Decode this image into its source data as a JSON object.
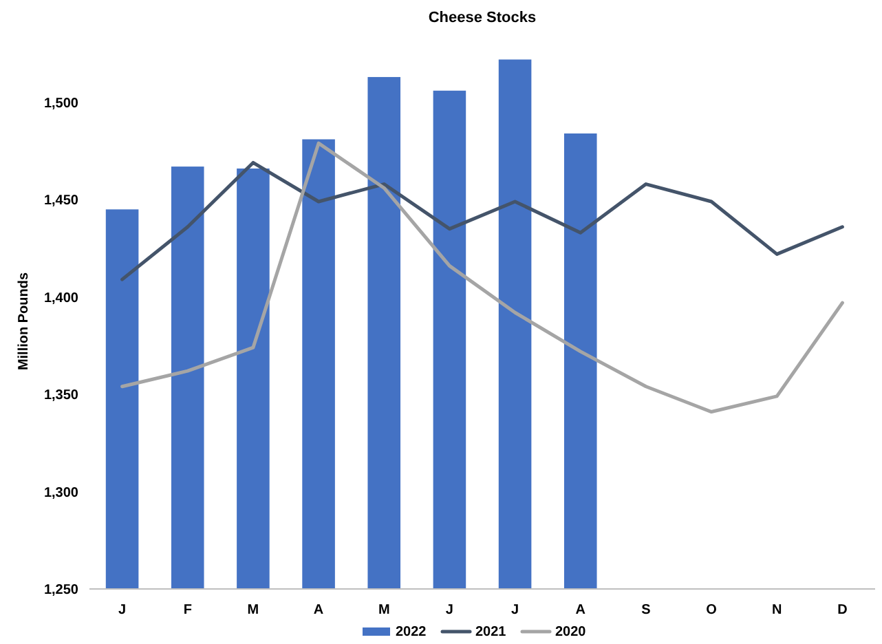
{
  "chart_data": {
    "type": "bar",
    "title": "Cheese Stocks",
    "ylabel": "Million Pounds",
    "categories": [
      "J",
      "F",
      "M",
      "A",
      "M",
      "J",
      "J",
      "A",
      "S",
      "O",
      "N",
      "D"
    ],
    "series": [
      {
        "name": "2022",
        "color": "#4472c4",
        "values": [
          1445,
          1467,
          1466,
          1481,
          1513,
          1506,
          1522,
          1484,
          null,
          null,
          null,
          null
        ]
      },
      {
        "name": "2021",
        "type": "line",
        "color": "#44546a",
        "values": [
          1409,
          1436,
          1469,
          1449,
          1458,
          1435,
          1449,
          1433,
          1458,
          1449,
          1422,
          1436
        ]
      },
      {
        "name": "2020",
        "type": "line",
        "color": "#a5a5a5",
        "values": [
          1354,
          1362,
          1374,
          1479,
          1456,
          1416,
          1392,
          1372,
          1354,
          1341,
          1349,
          1397
        ]
      }
    ],
    "ylim": [
      1250,
      1525
    ],
    "yticks": [
      {
        "value": 1250,
        "label": "1,250"
      },
      {
        "value": 1300,
        "label": "1,300"
      },
      {
        "value": 1350,
        "label": "1,350"
      },
      {
        "value": 1400,
        "label": "1,400"
      },
      {
        "value": 1450,
        "label": "1,450"
      },
      {
        "value": 1500,
        "label": "1,500"
      }
    ],
    "grid": false,
    "legend": "bottom"
  }
}
